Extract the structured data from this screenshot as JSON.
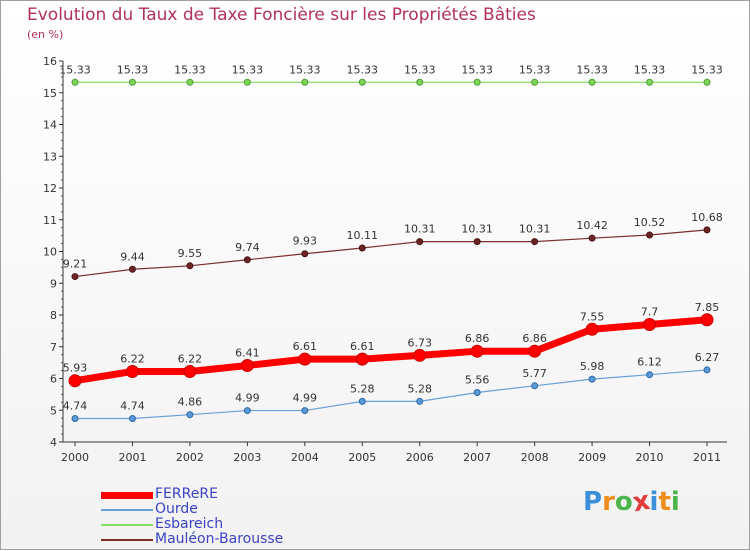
{
  "title": "Evolution du Taux de Taxe Foncière sur les Propriétés Bâties",
  "unit": "(en %)",
  "chart_data": {
    "type": "line",
    "title": "Evolution du Taux de Taxe Foncière sur les Propriétés Bâties",
    "ylabel": "(en %)",
    "xlabel": "",
    "ylim": [
      4,
      16
    ],
    "yticks": [
      4,
      5,
      6,
      7,
      8,
      9,
      10,
      11,
      12,
      13,
      14,
      15,
      16
    ],
    "categories": [
      "2000",
      "2001",
      "2002",
      "2003",
      "2004",
      "2005",
      "2006",
      "2007",
      "2008",
      "2009",
      "2010",
      "2011"
    ],
    "series": [
      {
        "name": "FERReRE",
        "color": "#ff0000",
        "values": [
          5.93,
          6.22,
          6.22,
          6.41,
          6.61,
          6.61,
          6.73,
          6.86,
          6.86,
          7.55,
          7.7,
          7.85
        ],
        "labels": [
          "5.93",
          "6.22",
          "6.22",
          "6.41",
          "6.61",
          "6.61",
          "6.73",
          "6.86",
          "6.86",
          "7.55",
          "7.7",
          "7.85"
        ]
      },
      {
        "name": "Ourde",
        "color": "#6aa0d8",
        "values": [
          4.74,
          4.74,
          4.86,
          4.99,
          4.99,
          5.28,
          5.28,
          5.56,
          5.77,
          5.98,
          6.12,
          6.27
        ],
        "labels": [
          "4.74",
          "4.74",
          "4.86",
          "4.99",
          "4.99",
          "5.28",
          "5.28",
          "5.56",
          "5.77",
          "5.98",
          "6.12",
          "6.27"
        ]
      },
      {
        "name": "Esbareich",
        "color": "#88dd66",
        "values": [
          15.33,
          15.33,
          15.33,
          15.33,
          15.33,
          15.33,
          15.33,
          15.33,
          15.33,
          15.33,
          15.33,
          15.33
        ],
        "labels": [
          "15.33",
          "15.33",
          "15.33",
          "15.33",
          "15.33",
          "15.33",
          "15.33",
          "15.33",
          "15.33",
          "15.33",
          "15.33",
          "15.33"
        ]
      },
      {
        "name": "Mauléon-Barousse",
        "color": "#7a2e2e",
        "values": [
          9.21,
          9.44,
          9.55,
          9.74,
          9.93,
          10.11,
          10.31,
          10.31,
          10.31,
          10.42,
          10.52,
          10.68
        ],
        "labels": [
          "9.21",
          "9.44",
          "9.55",
          "9.74",
          "9.93",
          "10.11",
          "10.31",
          "10.31",
          "10.31",
          "10.42",
          "10.52",
          "10.68"
        ]
      }
    ],
    "legend_position": "bottom-left"
  },
  "logo": {
    "text": "Proxiti",
    "letter_colors": [
      "#3a8fd8",
      "#f08c1c",
      "#4bb54b",
      "#e33a3a",
      "#3a8fd8",
      "#f08c1c",
      "#4bb54b"
    ]
  }
}
